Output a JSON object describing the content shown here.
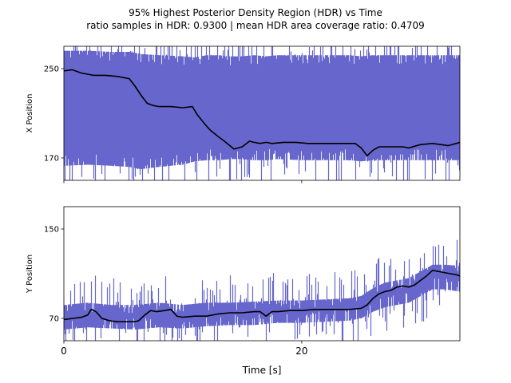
{
  "title_line1": "95% Highest Posterior Density Region (HDR) vs Time",
  "title_line2": "ratio samples in HDR: 0.9300 | mean HDR area coverage ratio: 0.4709",
  "colors": {
    "hdr_fill": "#6666cc",
    "trajectory": "#000000",
    "axes": "#000000"
  },
  "chart_data": [
    {
      "type": "area",
      "ylabel": "X Position",
      "xlim": [
        0,
        33.3
      ],
      "ylim": [
        150,
        270
      ],
      "yticks": [
        170,
        250
      ],
      "xticks": [
        0,
        20
      ],
      "xticklabels_visible": false,
      "trajectory": {
        "x": [
          0,
          0.7,
          1.5,
          2.5,
          3.5,
          4.5,
          5.5,
          6.0,
          6.5,
          7.0,
          7.5,
          8.0,
          9.0,
          10.0,
          10.8,
          11.2,
          11.8,
          12.3,
          13.0,
          13.5,
          14.3,
          15.0,
          15.6,
          16.0,
          16.5,
          17.0,
          17.5,
          18.5,
          19.5,
          20.5,
          21.5,
          22.5,
          23.5,
          24.5,
          25.0,
          25.5,
          26.0,
          26.5,
          27.5,
          28.5,
          29.0,
          30.0,
          31.0,
          31.7,
          32.3,
          33.0,
          33.3
        ],
        "y": [
          248,
          249,
          246,
          244,
          244,
          243,
          241,
          234,
          226,
          219,
          217,
          216,
          216,
          215,
          216,
          209,
          201,
          195,
          189,
          185,
          178,
          180,
          185,
          184,
          183,
          184,
          183,
          184,
          184,
          183,
          183,
          183,
          183,
          183,
          179,
          172,
          177,
          180,
          180,
          180,
          179,
          182,
          183,
          182,
          181,
          183,
          184
        ]
      },
      "hdr_band": {
        "x": [
          0,
          2,
          4,
          5.5,
          6.5,
          8,
          10,
          11,
          12,
          13,
          14,
          15,
          16,
          17,
          18,
          20,
          22,
          24,
          25,
          26,
          28,
          30,
          32,
          33.3
        ],
        "upper": [
          266,
          266,
          265,
          265,
          263,
          262,
          261,
          260,
          262,
          262,
          261,
          261,
          262,
          261,
          262,
          262,
          262,
          262,
          261,
          262,
          262,
          262,
          262,
          262
        ],
        "lower": [
          163,
          164,
          163,
          162,
          160,
          162,
          164,
          167,
          168,
          168,
          169,
          169,
          168,
          168,
          169,
          168,
          168,
          168,
          167,
          168,
          168,
          168,
          168,
          168
        ]
      }
    },
    {
      "type": "area",
      "ylabel": "Y Position",
      "xlabel": "Time [s]",
      "xlim": [
        0,
        33.3
      ],
      "ylim": [
        50,
        170
      ],
      "yticks": [
        70,
        150
      ],
      "xticks": [
        0,
        20
      ],
      "trajectory": {
        "x": [
          0,
          0.8,
          1.5,
          2.0,
          2.3,
          2.7,
          3.2,
          3.8,
          4.5,
          5.5,
          6.0,
          6.3,
          6.8,
          7.3,
          7.8,
          8.5,
          9.0,
          9.5,
          10.0,
          11.0,
          12.0,
          13.0,
          14.0,
          15.0,
          16.0,
          16.5,
          17.0,
          17.5,
          18.0,
          19.0,
          20.0,
          21.0,
          22.0,
          23.0,
          24.0,
          25.0,
          25.5,
          26.0,
          26.5,
          27.0,
          27.5,
          28.0,
          28.5,
          29.0,
          29.5,
          30.0,
          30.5,
          31.0,
          31.5,
          32.0,
          32.5,
          33.0,
          33.3
        ],
        "y": [
          69,
          70,
          71,
          73,
          78,
          76,
          70,
          68,
          67,
          67,
          67,
          68,
          73,
          77,
          76,
          77,
          78,
          72,
          71,
          72,
          72,
          74,
          75,
          75,
          76,
          76,
          72,
          76,
          76,
          77,
          77,
          78,
          78,
          78,
          78,
          79,
          82,
          88,
          92,
          94,
          95,
          98,
          99,
          98,
          100,
          104,
          108,
          113,
          112,
          111,
          110,
          109,
          108
        ]
      },
      "hdr_band": {
        "x": [
          0,
          2,
          4,
          6,
          8,
          10,
          12,
          14,
          16,
          18,
          20,
          22,
          24,
          25,
          26,
          27,
          28,
          29,
          30,
          31,
          32,
          33.3
        ],
        "upper": [
          82,
          84,
          82,
          82,
          84,
          82,
          84,
          84,
          85,
          86,
          86,
          87,
          88,
          90,
          97,
          102,
          104,
          106,
          112,
          118,
          118,
          117
        ],
        "lower": [
          60,
          62,
          61,
          60,
          62,
          61,
          63,
          64,
          64,
          66,
          66,
          67,
          68,
          70,
          76,
          80,
          82,
          84,
          90,
          96,
          96,
          94
        ]
      }
    }
  ]
}
